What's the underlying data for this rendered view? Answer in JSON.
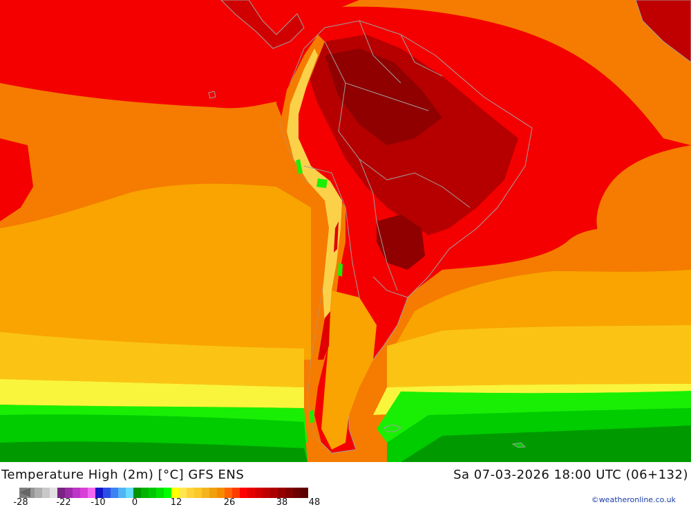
{
  "title": {
    "left": "Temperature High (2m) [°C] GFS ENS",
    "right": "Sa 07-03-2026 18:00 UTC (06+132)"
  },
  "legend": {
    "tick_labels": [
      "-28",
      "-22",
      "-10",
      "0",
      "12",
      "26",
      "38",
      "48"
    ],
    "colors": [
      "#7e7e7e",
      "#969696",
      "#afafaf",
      "#c8c8c8",
      "#e1e1e1",
      "#7a2283",
      "#9a2aa6",
      "#bc34c8",
      "#d83ed8",
      "#f266f2",
      "#1414c8",
      "#2850e6",
      "#3c82f0",
      "#50b4f5",
      "#64dcfa",
      "#009600",
      "#00b400",
      "#00c800",
      "#00e100",
      "#00ff00",
      "#ffff00",
      "#ffe650",
      "#ffd23c",
      "#fac828",
      "#f5b41e",
      "#f0a00a",
      "#f58c00",
      "#ff6400",
      "#ff3c00",
      "#ff0000",
      "#e60000",
      "#d20000",
      "#be0000",
      "#aa0000",
      "#960000",
      "#820000",
      "#6e0000",
      "#5a0000"
    ]
  },
  "map": {
    "region": "South America",
    "colors": {
      "ocean_warm": "#f57c00",
      "ocean_mid": "#f9a400",
      "ocean_cool": "#fbc414",
      "yellow": "#f9f53c",
      "green_bright": "#19ef05",
      "green_mid": "#00cc00",
      "green_dark": "#009a00",
      "red": "#f40000",
      "dark_red": "#c00000",
      "deep_red": "#900000",
      "border": "#a0a0a0"
    }
  },
  "credit": "©weatheronline.co.uk"
}
